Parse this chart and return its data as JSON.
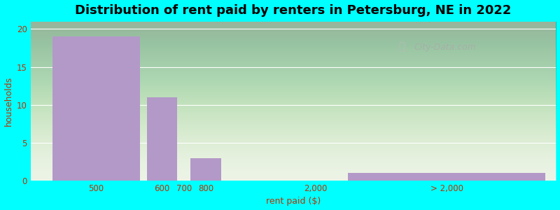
{
  "title": "Distribution of rent paid by renters in Petersburg, NE in 2022",
  "xlabel": "rent paid ($)",
  "ylabel": "households",
  "bar_labels": [
    "500",
    "600",
    "700",
    "800",
    "2,000",
    "> 2,000"
  ],
  "bar_centers": [
    1.5,
    3.0,
    3.5,
    4.0,
    6.5,
    9.5
  ],
  "bar_widths": [
    2.0,
    0.7,
    0.7,
    0.7,
    0.5,
    4.5
  ],
  "bar_heights": [
    19,
    11,
    0,
    3,
    0,
    1
  ],
  "tick_positions": [
    1.5,
    3.0,
    3.5,
    4.0,
    6.5,
    9.5
  ],
  "bar_color": "#b399c8",
  "ylim": [
    0,
    21
  ],
  "yticks": [
    0,
    5,
    10,
    15,
    20
  ],
  "xlim": [
    0,
    12
  ],
  "background_color": "#00ffff",
  "plot_bg_color": "#e8f0e0",
  "title_fontsize": 13,
  "axis_label_fontsize": 9,
  "tick_fontsize": 8.5,
  "watermark": "City-Data.com"
}
